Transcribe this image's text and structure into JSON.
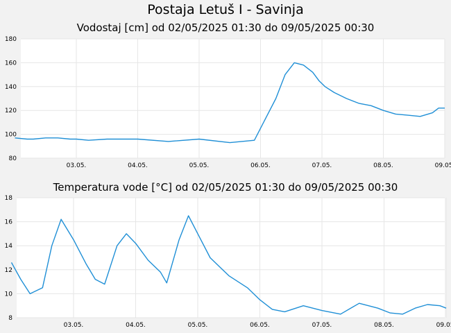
{
  "page": {
    "title": "Postaja Letuš I - Savinja"
  },
  "colors": {
    "line": "#1f8fd6",
    "plot_bg": "#ffffff",
    "grid": "#e6e6e6",
    "page_bg": "#f2f2f2"
  },
  "chart_data": [
    {
      "type": "line",
      "title": "Vodostaj [cm] od 02/05/2025 01:30 do 09/05/2025 00:30",
      "xlabel": "",
      "ylabel": "",
      "x_ticks": [
        "03.05.",
        "04.05.",
        "05.05.",
        "06.05.",
        "07.05.",
        "08.05.",
        "09.05."
      ],
      "ylim": [
        80,
        180
      ],
      "y_ticks": [
        80,
        100,
        120,
        140,
        160,
        180
      ],
      "grid": true,
      "series": [
        {
          "x": [
            0,
            0.2,
            0.3,
            0.5,
            0.7,
            0.9,
            1.0,
            1.2,
            1.5,
            2.0,
            2.5,
            3.0,
            3.5,
            3.9,
            4.1,
            4.25,
            4.4,
            4.55,
            4.7,
            4.85,
            4.95,
            5.05,
            5.2,
            5.4,
            5.6,
            5.8,
            6.0,
            6.2,
            6.4,
            6.6,
            6.8,
            6.9,
            7.0
          ],
          "values": [
            97,
            96,
            96,
            97,
            97,
            96,
            96,
            95,
            96,
            96,
            94,
            96,
            93,
            95,
            115,
            130,
            150,
            160,
            158,
            152,
            145,
            140,
            135,
            130,
            126,
            124,
            120,
            117,
            116,
            115,
            118,
            122,
            122
          ]
        }
      ]
    },
    {
      "type": "line",
      "title": "Temperatura vode [°C] od 02/05/2025 01:30 do 09/05/2025 00:30",
      "xlabel": "",
      "ylabel": "",
      "x_ticks": [
        "03.05.",
        "04.05.",
        "05.05.",
        "06.05.",
        "07.05.",
        "08.05.",
        "09.05."
      ],
      "ylim": [
        8,
        18
      ],
      "y_ticks": [
        8,
        10,
        12,
        14,
        16,
        18
      ],
      "grid": true,
      "series": [
        {
          "x": [
            0,
            0.15,
            0.3,
            0.5,
            0.65,
            0.8,
            1.0,
            1.2,
            1.35,
            1.5,
            1.7,
            1.85,
            2.0,
            2.2,
            2.4,
            2.5,
            2.7,
            2.85,
            3.0,
            3.2,
            3.5,
            3.8,
            4.0,
            4.2,
            4.4,
            4.7,
            5.0,
            5.3,
            5.6,
            5.9,
            6.1,
            6.3,
            6.5,
            6.7,
            6.9,
            7.0
          ],
          "values": [
            12.6,
            11.2,
            10.0,
            10.5,
            14.0,
            16.2,
            14.5,
            12.5,
            11.2,
            10.8,
            14.0,
            15.0,
            14.2,
            12.8,
            11.8,
            10.9,
            14.5,
            16.5,
            15.0,
            13.0,
            11.5,
            10.5,
            9.5,
            8.7,
            8.5,
            9.0,
            8.6,
            8.3,
            9.2,
            8.8,
            8.4,
            8.3,
            8.8,
            9.1,
            9.0,
            8.8
          ]
        }
      ]
    }
  ]
}
